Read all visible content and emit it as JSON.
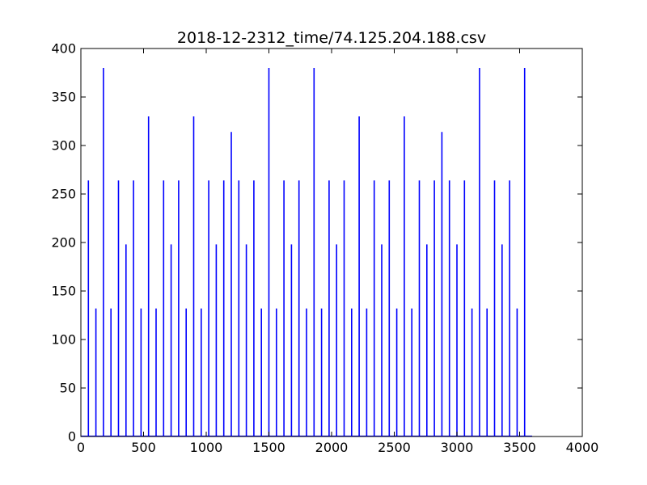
{
  "chart_data": {
    "type": "bar",
    "title": "2018-12-2312_time/74.125.204.188.csv",
    "xlabel": "",
    "ylabel": "",
    "xlim": [
      0,
      4000
    ],
    "ylim": [
      0,
      400
    ],
    "x_ticks": [
      0,
      500,
      1000,
      1500,
      2000,
      2500,
      3000,
      3500,
      4000
    ],
    "y_ticks": [
      0,
      50,
      100,
      150,
      200,
      250,
      300,
      350,
      400
    ],
    "grid": false,
    "legend": "none",
    "color": "#0000ff",
    "x_data_end": 3600,
    "points": [
      {
        "x": 60,
        "y": 264
      },
      {
        "x": 120,
        "y": 132
      },
      {
        "x": 180,
        "y": 380
      },
      {
        "x": 240,
        "y": 132
      },
      {
        "x": 300,
        "y": 264
      },
      {
        "x": 360,
        "y": 198
      },
      {
        "x": 420,
        "y": 264
      },
      {
        "x": 480,
        "y": 132
      },
      {
        "x": 540,
        "y": 330
      },
      {
        "x": 600,
        "y": 132
      },
      {
        "x": 660,
        "y": 264
      },
      {
        "x": 720,
        "y": 198
      },
      {
        "x": 780,
        "y": 264
      },
      {
        "x": 840,
        "y": 132
      },
      {
        "x": 900,
        "y": 330
      },
      {
        "x": 960,
        "y": 132
      },
      {
        "x": 1020,
        "y": 264
      },
      {
        "x": 1080,
        "y": 198
      },
      {
        "x": 1140,
        "y": 264
      },
      {
        "x": 1200,
        "y": 314
      },
      {
        "x": 1260,
        "y": 264
      },
      {
        "x": 1320,
        "y": 198
      },
      {
        "x": 1380,
        "y": 264
      },
      {
        "x": 1440,
        "y": 132
      },
      {
        "x": 1500,
        "y": 380
      },
      {
        "x": 1560,
        "y": 132
      },
      {
        "x": 1620,
        "y": 264
      },
      {
        "x": 1680,
        "y": 198
      },
      {
        "x": 1740,
        "y": 264
      },
      {
        "x": 1800,
        "y": 132
      },
      {
        "x": 1860,
        "y": 380
      },
      {
        "x": 1920,
        "y": 132
      },
      {
        "x": 1980,
        "y": 264
      },
      {
        "x": 2040,
        "y": 198
      },
      {
        "x": 2100,
        "y": 264
      },
      {
        "x": 2160,
        "y": 132
      },
      {
        "x": 2220,
        "y": 330
      },
      {
        "x": 2280,
        "y": 132
      },
      {
        "x": 2340,
        "y": 264
      },
      {
        "x": 2400,
        "y": 198
      },
      {
        "x": 2460,
        "y": 264
      },
      {
        "x": 2520,
        "y": 132
      },
      {
        "x": 2580,
        "y": 330
      },
      {
        "x": 2640,
        "y": 132
      },
      {
        "x": 2700,
        "y": 264
      },
      {
        "x": 2760,
        "y": 198
      },
      {
        "x": 2820,
        "y": 264
      },
      {
        "x": 2880,
        "y": 314
      },
      {
        "x": 2940,
        "y": 264
      },
      {
        "x": 3000,
        "y": 198
      },
      {
        "x": 3060,
        "y": 264
      },
      {
        "x": 3120,
        "y": 132
      },
      {
        "x": 3180,
        "y": 380
      },
      {
        "x": 3240,
        "y": 132
      },
      {
        "x": 3300,
        "y": 264
      },
      {
        "x": 3360,
        "y": 198
      },
      {
        "x": 3420,
        "y": 264
      },
      {
        "x": 3480,
        "y": 132
      },
      {
        "x": 3540,
        "y": 380
      }
    ]
  }
}
